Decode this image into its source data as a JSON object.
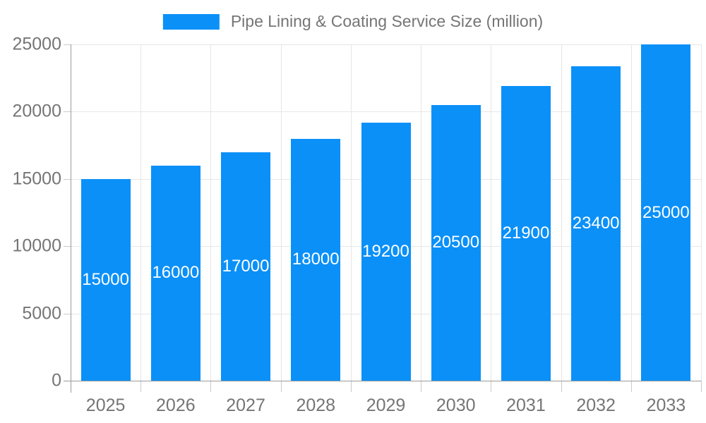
{
  "legend": {
    "label": "Pipe Lining & Coating Service Size (million)",
    "swatch_color": "#0b90f8"
  },
  "chart_data": {
    "type": "bar",
    "title": "Pipe Lining & Coating Service Size (million)",
    "categories": [
      "2025",
      "2026",
      "2027",
      "2028",
      "2029",
      "2030",
      "2031",
      "2032",
      "2033"
    ],
    "values": [
      15000,
      16000,
      17000,
      18000,
      19200,
      20500,
      21900,
      23400,
      25000
    ],
    "xlabel": "",
    "ylabel": "",
    "ylim": [
      0,
      25000
    ],
    "yticks": [
      0,
      5000,
      10000,
      15000,
      20000,
      25000
    ],
    "ytick_labels": [
      "0",
      "5000",
      "10000",
      "15000",
      "20000",
      "25000"
    ],
    "grid": true,
    "legend_position": "top-center",
    "bar_color": "#0b90f8",
    "bar_label_color": "#ffffff",
    "axis_text_color": "#757575",
    "gridline_color": "#e6e6e6",
    "axis_line_color": "#9a9a9a"
  }
}
